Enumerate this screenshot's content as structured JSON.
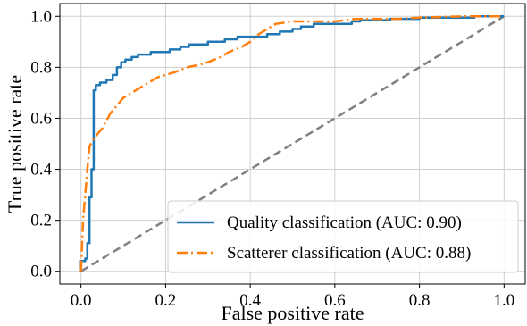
{
  "chart_data": {
    "type": "line",
    "title": "",
    "xlabel": "False positive rate",
    "ylabel": "True positive rate",
    "xlim": [
      -0.05,
      1.05
    ],
    "ylim": [
      -0.05,
      1.05
    ],
    "xticks": [
      "0.0",
      "0.2",
      "0.4",
      "0.6",
      "0.8",
      "1.0"
    ],
    "yticks": [
      "0.0",
      "0.2",
      "0.4",
      "0.6",
      "0.8",
      "1.0"
    ],
    "grid": true,
    "legend_position": "lower-right",
    "series": [
      {
        "name": "Quality classification (AUC: 0.90)",
        "color": "#1f77b4",
        "style": "solid-step",
        "x": [
          0.0,
          0.0,
          0.01,
          0.01,
          0.015,
          0.015,
          0.02,
          0.02,
          0.025,
          0.025,
          0.03,
          0.03,
          0.035,
          0.035,
          0.045,
          0.045,
          0.06,
          0.06,
          0.075,
          0.075,
          0.085,
          0.085,
          0.095,
          0.095,
          0.105,
          0.105,
          0.12,
          0.12,
          0.135,
          0.135,
          0.165,
          0.165,
          0.21,
          0.21,
          0.235,
          0.235,
          0.255,
          0.255,
          0.3,
          0.3,
          0.34,
          0.34,
          0.37,
          0.37,
          0.44,
          0.44,
          0.47,
          0.47,
          0.5,
          0.5,
          0.52,
          0.52,
          0.55,
          0.55,
          0.64,
          0.64,
          0.66,
          0.66,
          0.73,
          0.73,
          0.8,
          0.8,
          0.93,
          0.93,
          1.0
        ],
        "y": [
          0.0,
          0.04,
          0.04,
          0.05,
          0.05,
          0.11,
          0.11,
          0.29,
          0.29,
          0.4,
          0.4,
          0.71,
          0.71,
          0.73,
          0.73,
          0.74,
          0.74,
          0.75,
          0.75,
          0.77,
          0.77,
          0.8,
          0.8,
          0.82,
          0.82,
          0.83,
          0.83,
          0.84,
          0.84,
          0.85,
          0.85,
          0.86,
          0.86,
          0.87,
          0.87,
          0.88,
          0.88,
          0.89,
          0.89,
          0.9,
          0.9,
          0.91,
          0.91,
          0.92,
          0.92,
          0.93,
          0.93,
          0.94,
          0.94,
          0.95,
          0.95,
          0.96,
          0.96,
          0.97,
          0.97,
          0.98,
          0.98,
          0.985,
          0.985,
          0.99,
          0.99,
          0.995,
          0.995,
          1.0,
          1.0
        ]
      },
      {
        "name": "Scatterer classification (AUC: 0.88)",
        "color": "#ff7f0e",
        "style": "dash-dot",
        "x": [
          0.0,
          0.005,
          0.01,
          0.015,
          0.02,
          0.03,
          0.04,
          0.05,
          0.06,
          0.07,
          0.08,
          0.09,
          0.1,
          0.12,
          0.14,
          0.16,
          0.18,
          0.2,
          0.22,
          0.25,
          0.28,
          0.3,
          0.33,
          0.35,
          0.38,
          0.4,
          0.42,
          0.44,
          0.46,
          0.5,
          0.55,
          0.6,
          0.65,
          0.7,
          0.75,
          0.8,
          0.9,
          1.0
        ],
        "y": [
          0.0,
          0.2,
          0.3,
          0.4,
          0.49,
          0.52,
          0.54,
          0.56,
          0.59,
          0.62,
          0.64,
          0.66,
          0.68,
          0.7,
          0.72,
          0.74,
          0.76,
          0.77,
          0.78,
          0.8,
          0.81,
          0.82,
          0.84,
          0.86,
          0.88,
          0.9,
          0.93,
          0.95,
          0.97,
          0.98,
          0.98,
          0.98,
          0.99,
          0.99,
          0.99,
          0.995,
          1.0,
          1.0
        ]
      },
      {
        "name": "",
        "color": "#808080",
        "style": "dashed",
        "x": [
          0.0,
          1.0
        ],
        "y": [
          0.0,
          1.0
        ]
      }
    ]
  }
}
